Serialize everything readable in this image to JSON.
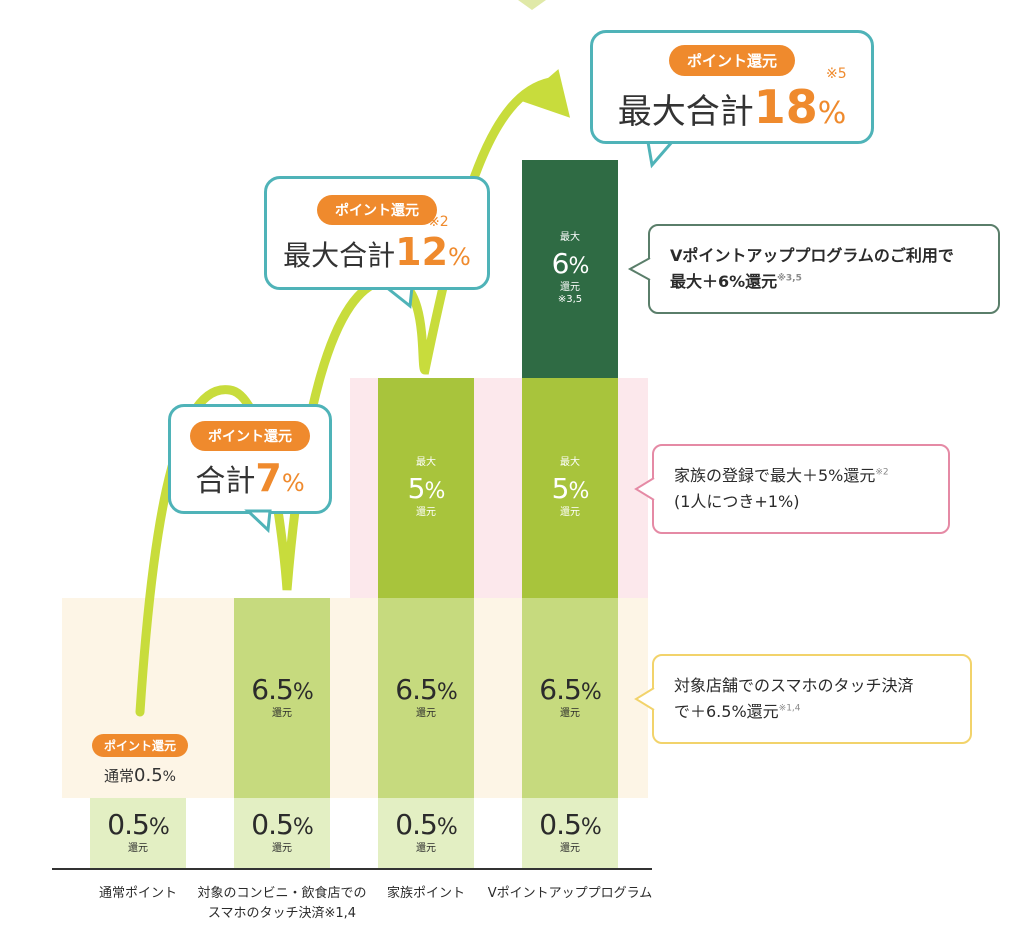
{
  "chart_data": {
    "type": "bar",
    "stacked": true,
    "categories": [
      "通常ポイント",
      "対象のコンビニ・飲食店でのスマホのタッチ決済※1,4",
      "家族ポイント",
      "Vポイントアッププログラム"
    ],
    "category_lines": [
      [
        "通常ポイント"
      ],
      [
        "対象のコンビニ・飲食店での",
        "スマホのタッチ決済※1,4"
      ],
      [
        "家族ポイント"
      ],
      [
        "Vポイントアッププログラム"
      ]
    ],
    "unit": "%",
    "segments": [
      {
        "key": "base",
        "values": [
          0.5,
          0.5,
          0.5,
          0.5
        ],
        "color": "#e3efc3",
        "value_text": "0.5",
        "sub_text": "還元",
        "prefix": "",
        "note": ""
      },
      {
        "key": "touch",
        "values": [
          0,
          6.5,
          6.5,
          6.5
        ],
        "color": "#c6da7e",
        "value_text": "6.5",
        "sub_text": "還元",
        "prefix": "",
        "note": ""
      },
      {
        "key": "family",
        "values": [
          0,
          0,
          5,
          5
        ],
        "color": "#a8c43c",
        "value_text": "5",
        "sub_text": "還元",
        "prefix": "最大",
        "note": ""
      },
      {
        "key": "vup",
        "values": [
          0,
          0,
          0,
          6
        ],
        "color": "#2f6b44",
        "value_text": "6",
        "sub_text": "還元",
        "prefix": "最大",
        "note": "※3,5"
      }
    ],
    "totals": [
      0.5,
      7,
      12,
      18
    ]
  },
  "bubbles": [
    {
      "pill": "ポイント還元",
      "pre": "合計",
      "num": "7",
      "pct": "%",
      "note": ""
    },
    {
      "pill": "ポイント還元",
      "pre": "最大合計",
      "num": "12",
      "pct": "%",
      "note": "※2"
    },
    {
      "pill": "ポイント還元",
      "pre": "最大合計",
      "num": "18",
      "pct": "%",
      "note": "※5"
    }
  ],
  "base_label": {
    "pill": "ポイント還元",
    "pre": "通常",
    "num": "0.5",
    "pct": "%"
  },
  "callouts": [
    {
      "line1": "Vポイントアッププログラムのご利用で",
      "line2": "最大＋6%還元",
      "sup": "※3,5",
      "color": "#5a7e6a"
    },
    {
      "line1": "家族の登録で最大＋5%還元",
      "sup1": "※2",
      "line2": "(1人につき+1%)",
      "color": "#e58aa5"
    },
    {
      "line1": "対象店舗でのスマホのタッチ決済",
      "line2": "で＋6.5%還元",
      "sup": "※1,4",
      "color": "#f2d36b"
    }
  ],
  "colors": {
    "accent": "#ef8a2d",
    "bubble_border": "#4fb3b8",
    "arrow": "#c8dc3c",
    "band_touch": "#fdf5e6",
    "band_family": "#fce8ec"
  }
}
